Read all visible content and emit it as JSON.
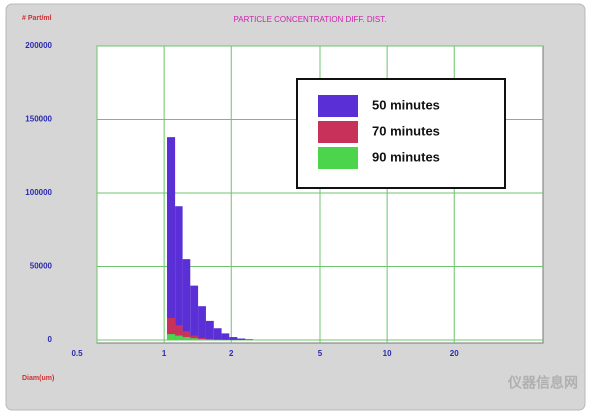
{
  "chart_data": {
    "type": "histogram",
    "title": "PARTICLE CONCENTRATION DIFF. DIST.",
    "y_label": "# Part/ml",
    "x_label": "Diam(um)",
    "watermark": "仪器信息网",
    "log_x": true,
    "xlim": [
      0.5,
      50
    ],
    "xticks": [
      0.5,
      1,
      2,
      5,
      10,
      20
    ],
    "ylim": [
      0,
      200000
    ],
    "yticks": [
      0,
      50000,
      100000,
      150000,
      200000
    ],
    "grid": true,
    "legend": "upper right",
    "bins": [
      1.03,
      1.12,
      1.21,
      1.31,
      1.42,
      1.54,
      1.67,
      1.81,
      1.96,
      2.13,
      2.31,
      2.5
    ],
    "series": [
      {
        "name": "50 minutes",
        "color": "#5a2fd6",
        "values": [
          138000,
          91000,
          55000,
          37000,
          23000,
          13000,
          8000,
          4500,
          2000,
          1000,
          500
        ]
      },
      {
        "name": "70 minutes",
        "color": "#c8325a",
        "values": [
          15000,
          10000,
          6000,
          3000,
          1500,
          800,
          400,
          200,
          100,
          50,
          20
        ]
      },
      {
        "name": "90 minutes",
        "color": "#4cd44c",
        "values": [
          4000,
          3000,
          2000,
          1200,
          600,
          300,
          150,
          80,
          40,
          20,
          10
        ]
      }
    ]
  }
}
